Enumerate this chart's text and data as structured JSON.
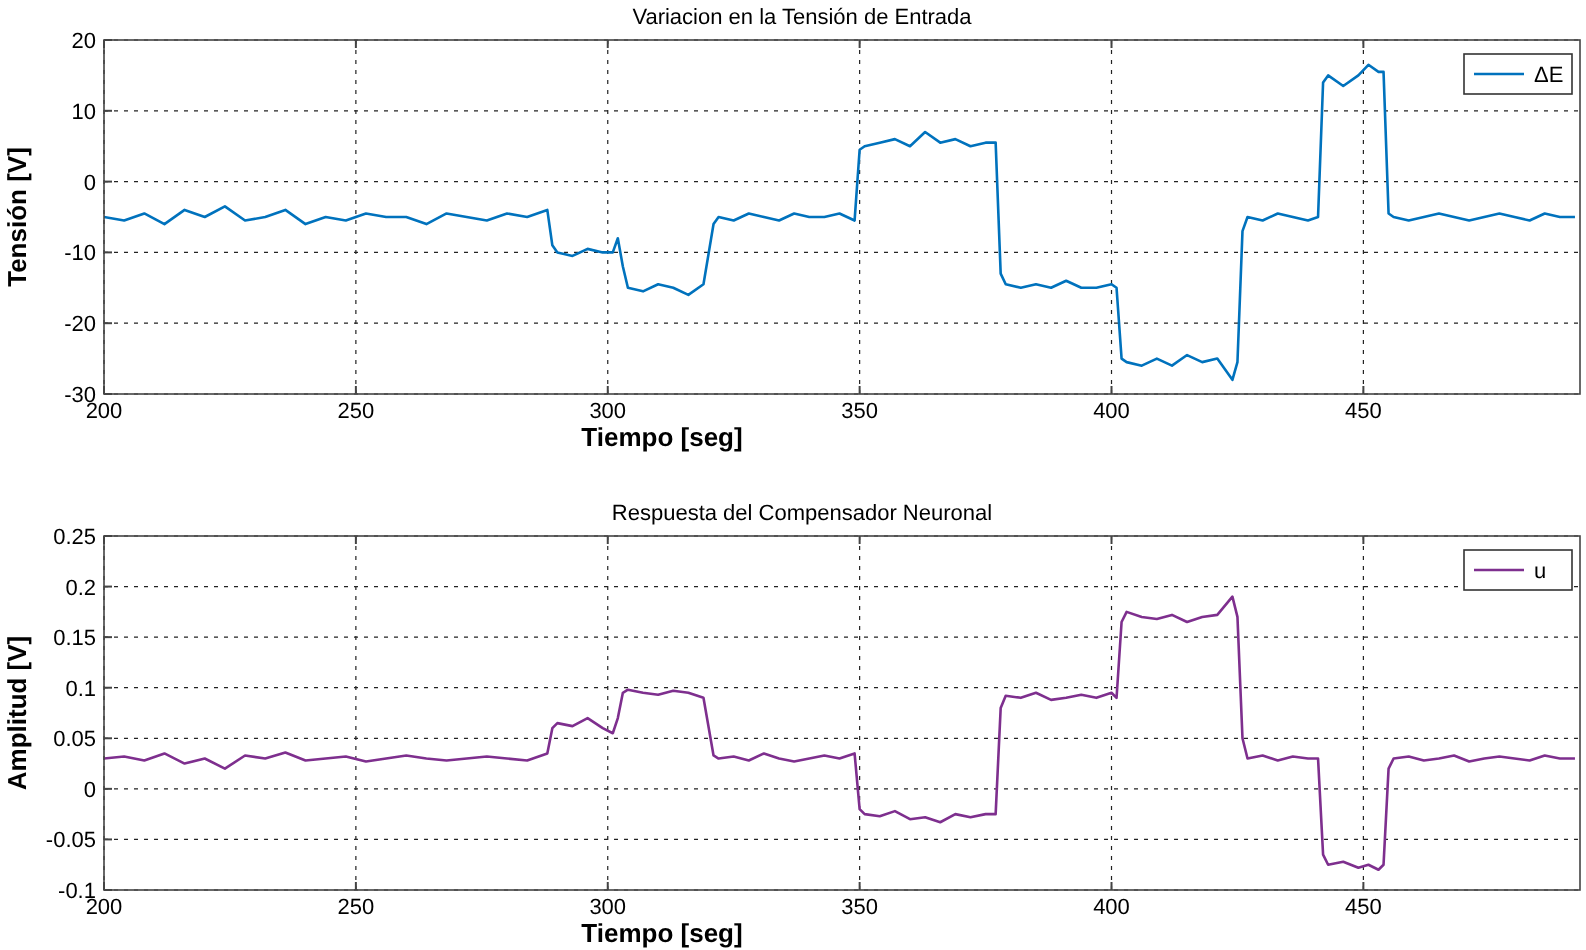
{
  "chart_data": [
    {
      "type": "line",
      "title": "Variacion en la Tensión de Entrada",
      "xlabel": "Tiempo [seg]",
      "ylabel": "Tensión [V]",
      "xlim": [
        200,
        493
      ],
      "xticks": [
        200,
        250,
        300,
        350,
        400,
        450
      ],
      "ylim": [
        -30,
        20
      ],
      "yticks": [
        -30,
        -20,
        -10,
        0,
        10,
        20
      ],
      "grid": true,
      "legend": "top right",
      "line_style": "solid",
      "marker": "none",
      "series": [
        {
          "name": "ΔE",
          "color": "#0072bd",
          "x": [
            200,
            204,
            208,
            212,
            216,
            220,
            224,
            228,
            232,
            236,
            240,
            244,
            248,
            252,
            256,
            260,
            264,
            268,
            272,
            276,
            280,
            284,
            288,
            289,
            290,
            293,
            296,
            299,
            301,
            302,
            303,
            304,
            307,
            310,
            313,
            316,
            319,
            321,
            322,
            325,
            328,
            331,
            334,
            337,
            340,
            343,
            346,
            349,
            350,
            351,
            354,
            357,
            360,
            363,
            366,
            369,
            372,
            375,
            377,
            378,
            379,
            382,
            385,
            388,
            391,
            394,
            397,
            400,
            401,
            402,
            403,
            406,
            409,
            412,
            415,
            418,
            421,
            424,
            425,
            426,
            427,
            430,
            433,
            436,
            439,
            441,
            442,
            443,
            446,
            449,
            451,
            453,
            454,
            455,
            456,
            459,
            462,
            465,
            468,
            471,
            474,
            477,
            480,
            483,
            486,
            489,
            492
          ],
          "values": [
            -5,
            -5.5,
            -4.5,
            -6,
            -4,
            -5,
            -3.5,
            -5.5,
            -5,
            -4,
            -6,
            -5,
            -5.5,
            -4.5,
            -5,
            -5,
            -6,
            -4.5,
            -5,
            -5.5,
            -4.5,
            -5,
            -4,
            -9,
            -10,
            -10.5,
            -9.5,
            -10,
            -10,
            -8,
            -12,
            -15,
            -15.5,
            -14.5,
            -15,
            -16,
            -14.5,
            -6,
            -5,
            -5.5,
            -4.5,
            -5,
            -5.5,
            -4.5,
            -5,
            -5,
            -4.5,
            -5.5,
            4.5,
            5,
            5.5,
            6,
            5,
            7,
            5.5,
            6,
            5,
            5.5,
            5.5,
            -13,
            -14.5,
            -15,
            -14.5,
            -15,
            -14,
            -15,
            -15,
            -14.5,
            -15,
            -25,
            -25.5,
            -26,
            -25,
            -26,
            -24.5,
            -25.5,
            -25,
            -28,
            -25.5,
            -7,
            -5,
            -5.5,
            -4.5,
            -5,
            -5.5,
            -5,
            14,
            15,
            13.5,
            15,
            16.5,
            15.5,
            15.5,
            -4.5,
            -5,
            -5.5,
            -5,
            -4.5,
            -5,
            -5.5,
            -5,
            -4.5,
            -5,
            -5.5,
            -4.5,
            -5,
            -5
          ]
        }
      ]
    },
    {
      "type": "line",
      "title": "Respuesta del Compensador Neuronal",
      "xlabel": "Tiempo [seg]",
      "ylabel": "Amplitud [V]",
      "xlim": [
        200,
        493
      ],
      "xticks": [
        200,
        250,
        300,
        350,
        400,
        450
      ],
      "ylim": [
        -0.1,
        0.25
      ],
      "yticks": [
        -0.1,
        -0.05,
        0,
        0.05,
        0.1,
        0.15,
        0.2,
        0.25
      ],
      "grid": true,
      "legend": "top right",
      "line_style": "solid",
      "marker": "none",
      "series": [
        {
          "name": "u",
          "color": "#7e2f8e",
          "x": [
            200,
            204,
            208,
            212,
            216,
            220,
            224,
            228,
            232,
            236,
            240,
            244,
            248,
            252,
            256,
            260,
            264,
            268,
            272,
            276,
            280,
            284,
            288,
            289,
            290,
            293,
            296,
            299,
            301,
            302,
            303,
            304,
            307,
            310,
            313,
            316,
            319,
            321,
            322,
            325,
            328,
            331,
            334,
            337,
            340,
            343,
            346,
            349,
            350,
            351,
            354,
            357,
            360,
            363,
            366,
            369,
            372,
            375,
            377,
            378,
            379,
            382,
            385,
            388,
            391,
            394,
            397,
            400,
            401,
            402,
            403,
            406,
            409,
            412,
            415,
            418,
            421,
            424,
            425,
            426,
            427,
            430,
            433,
            436,
            439,
            441,
            442,
            443,
            446,
            449,
            451,
            453,
            454,
            455,
            456,
            459,
            462,
            465,
            468,
            471,
            474,
            477,
            480,
            483,
            486,
            489,
            492
          ],
          "values": [
            0.03,
            0.032,
            0.028,
            0.035,
            0.025,
            0.03,
            0.02,
            0.033,
            0.03,
            0.036,
            0.028,
            0.03,
            0.032,
            0.027,
            0.03,
            0.033,
            0.03,
            0.028,
            0.03,
            0.032,
            0.03,
            0.028,
            0.035,
            0.06,
            0.065,
            0.062,
            0.07,
            0.06,
            0.055,
            0.07,
            0.095,
            0.098,
            0.095,
            0.093,
            0.097,
            0.095,
            0.09,
            0.033,
            0.03,
            0.032,
            0.028,
            0.035,
            0.03,
            0.027,
            0.03,
            0.033,
            0.03,
            0.035,
            -0.02,
            -0.025,
            -0.027,
            -0.022,
            -0.03,
            -0.028,
            -0.033,
            -0.025,
            -0.028,
            -0.025,
            -0.025,
            0.08,
            0.092,
            0.09,
            0.095,
            0.088,
            0.09,
            0.093,
            0.09,
            0.095,
            0.09,
            0.165,
            0.175,
            0.17,
            0.168,
            0.172,
            0.165,
            0.17,
            0.172,
            0.19,
            0.17,
            0.05,
            0.03,
            0.033,
            0.028,
            0.032,
            0.03,
            0.03,
            -0.065,
            -0.075,
            -0.072,
            -0.078,
            -0.075,
            -0.08,
            -0.075,
            0.02,
            0.03,
            0.032,
            0.028,
            0.03,
            0.033,
            0.027,
            0.03,
            0.032,
            0.03,
            0.028,
            0.033,
            0.03,
            0.03
          ]
        }
      ]
    }
  ]
}
